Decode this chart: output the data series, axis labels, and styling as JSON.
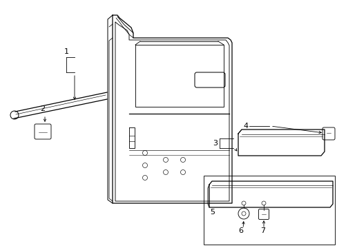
{
  "bg_color": "#ffffff",
  "line_color": "#000000",
  "fig_width": 4.89,
  "fig_height": 3.6,
  "lw": 0.9
}
